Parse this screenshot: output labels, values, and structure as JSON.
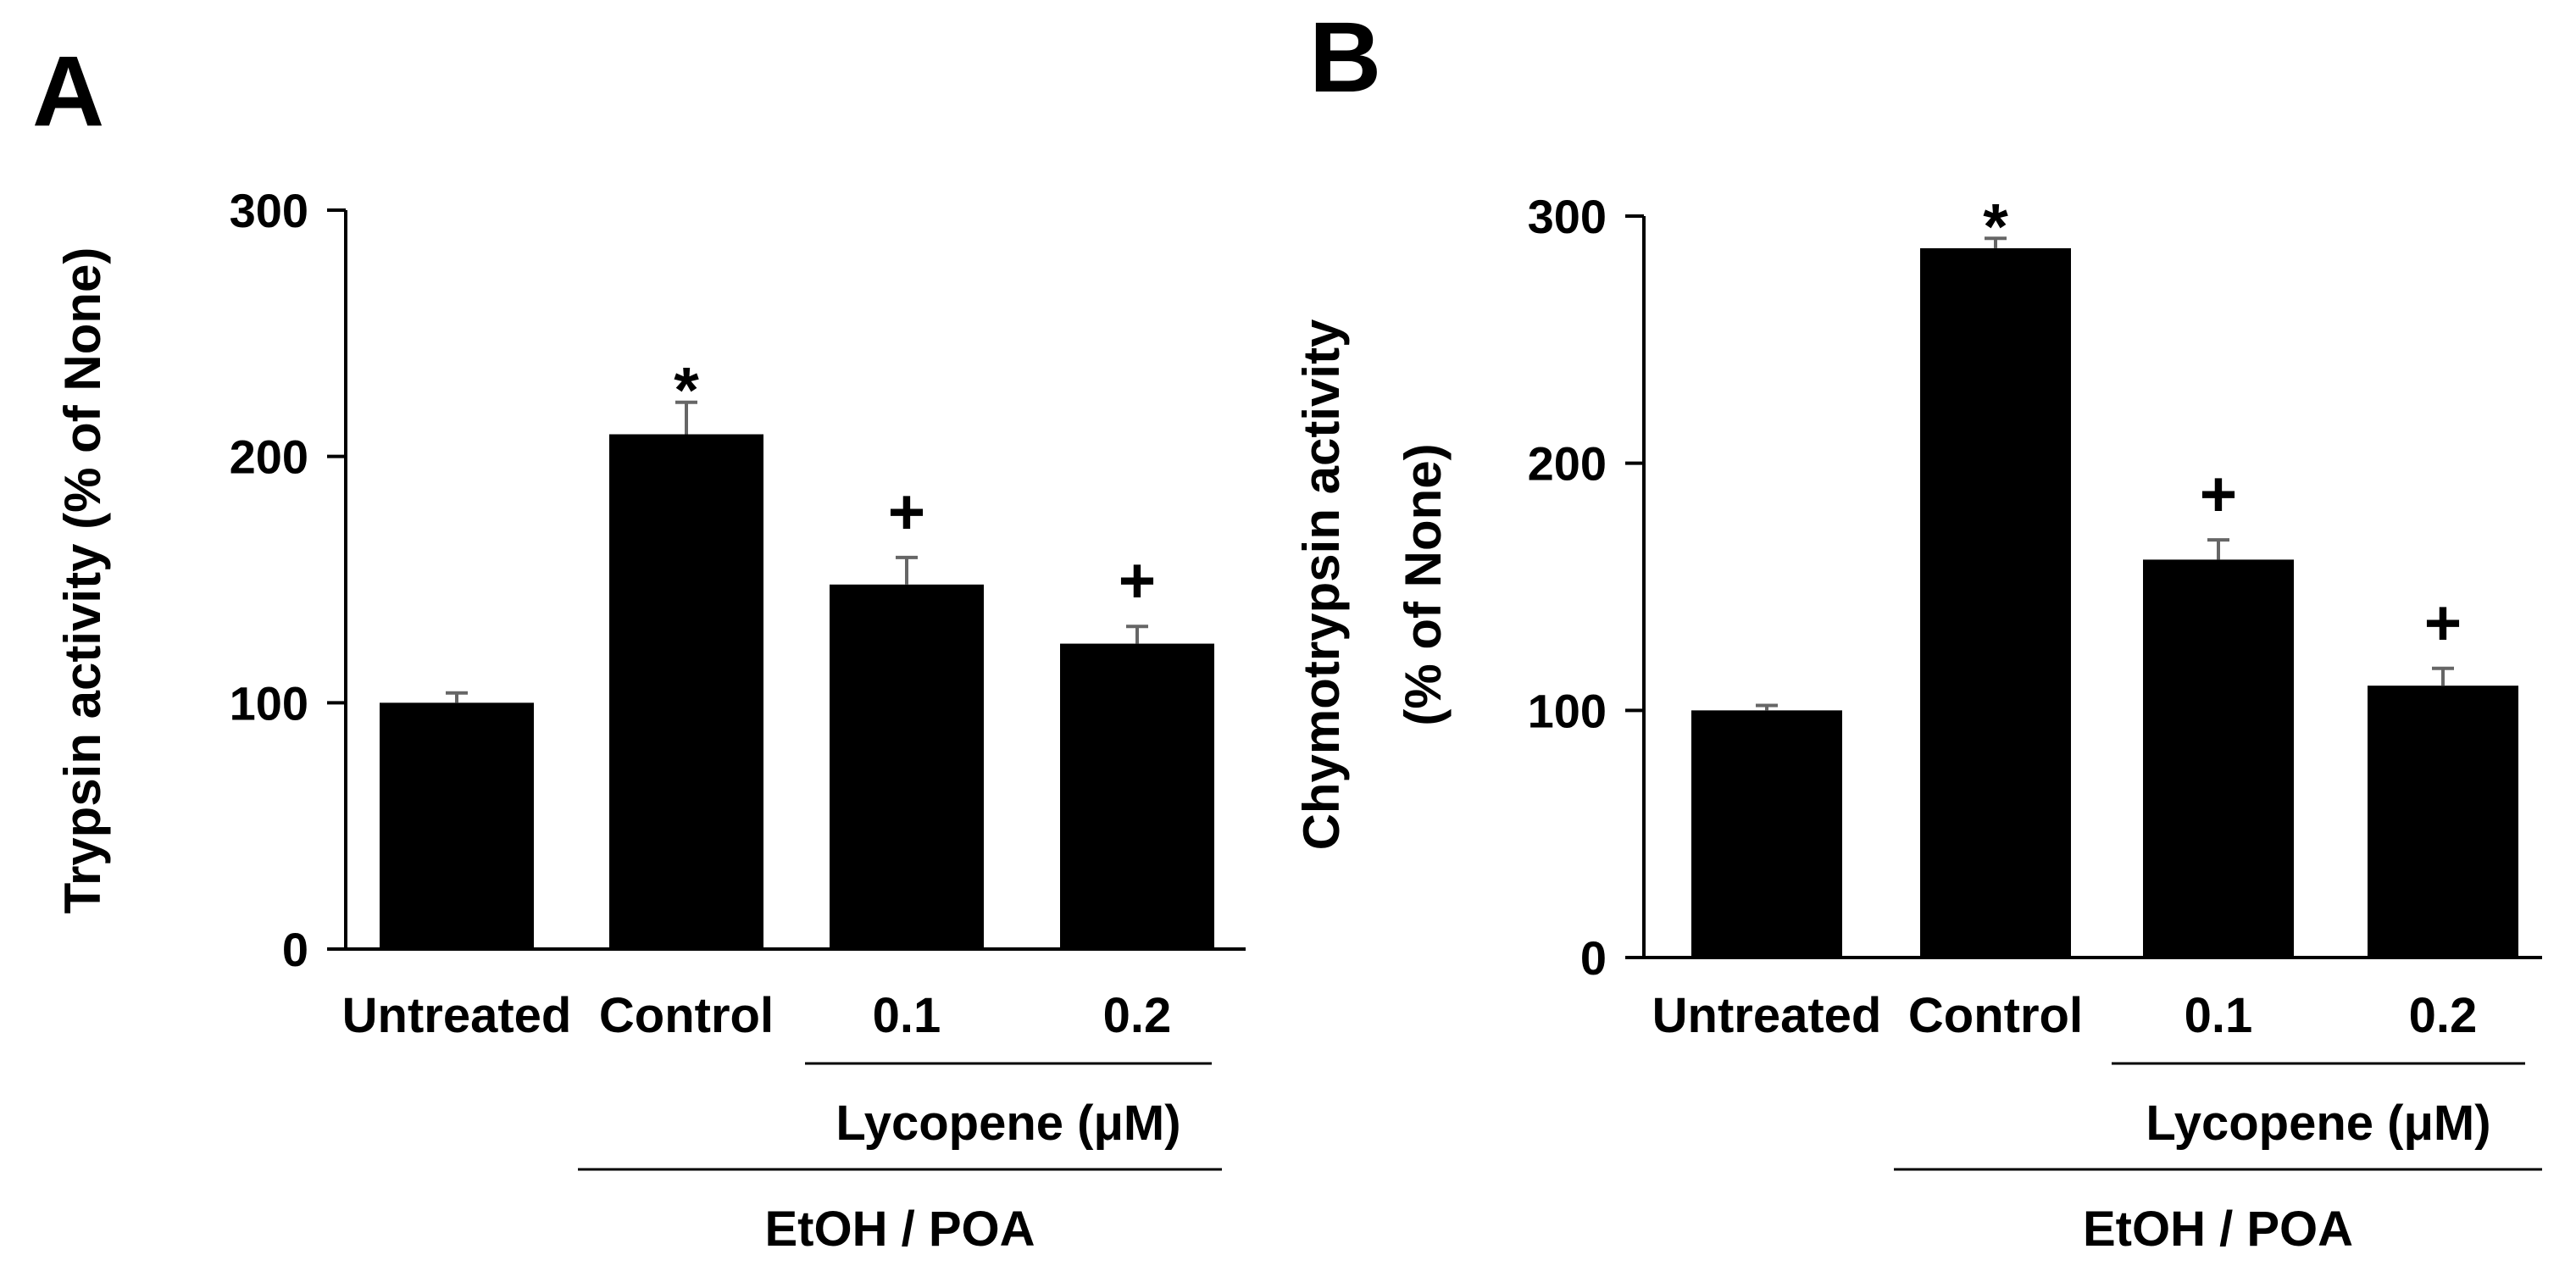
{
  "figure": {
    "panels": [
      "A",
      "B"
    ],
    "colors": {
      "bar": "#000000",
      "error_bar": "#666666",
      "axis": "#000000",
      "background": "#ffffff"
    }
  },
  "chart_data": [
    {
      "type": "bar",
      "panel_label": "A",
      "title": "",
      "ylabel": "Trypsin activity (% of None)",
      "ylabel_lines": [
        "Trypsin activity (% of None)"
      ],
      "xlabel": "",
      "ylim": [
        0,
        300
      ],
      "yticks": [
        0,
        100,
        200,
        300
      ],
      "categories": [
        "Untreated",
        "Control",
        "0.1",
        "0.2"
      ],
      "values": [
        100,
        209,
        148,
        124
      ],
      "errors": [
        4,
        13,
        11,
        7
      ],
      "significance_marks": [
        "",
        "*",
        "+",
        "+"
      ],
      "grid": false,
      "groupings": [
        {
          "label": "Lycopene (μM)",
          "categories": [
            "0.1",
            "0.2"
          ]
        },
        {
          "label": "EtOH / POA",
          "categories": [
            "Control",
            "0.1",
            "0.2"
          ]
        }
      ]
    },
    {
      "type": "bar",
      "panel_label": "B",
      "title": "",
      "ylabel": "Chymotrypsin activity (% of None)",
      "ylabel_lines": [
        "Chymotrypsin activity",
        "(% of None)"
      ],
      "xlabel": "",
      "ylim": [
        0,
        300
      ],
      "yticks": [
        0,
        100,
        200,
        300
      ],
      "categories": [
        "Untreated",
        "Control",
        "0.1",
        "0.2"
      ],
      "values": [
        100,
        287,
        161,
        110
      ],
      "errors": [
        2,
        4,
        8,
        7
      ],
      "significance_marks": [
        "",
        "*",
        "+",
        "+"
      ],
      "grid": false,
      "groupings": [
        {
          "label": "Lycopene (μM)",
          "categories": [
            "0.1",
            "0.2"
          ]
        },
        {
          "label": "EtOH / POA",
          "categories": [
            "Control",
            "0.1",
            "0.2"
          ]
        }
      ]
    }
  ]
}
